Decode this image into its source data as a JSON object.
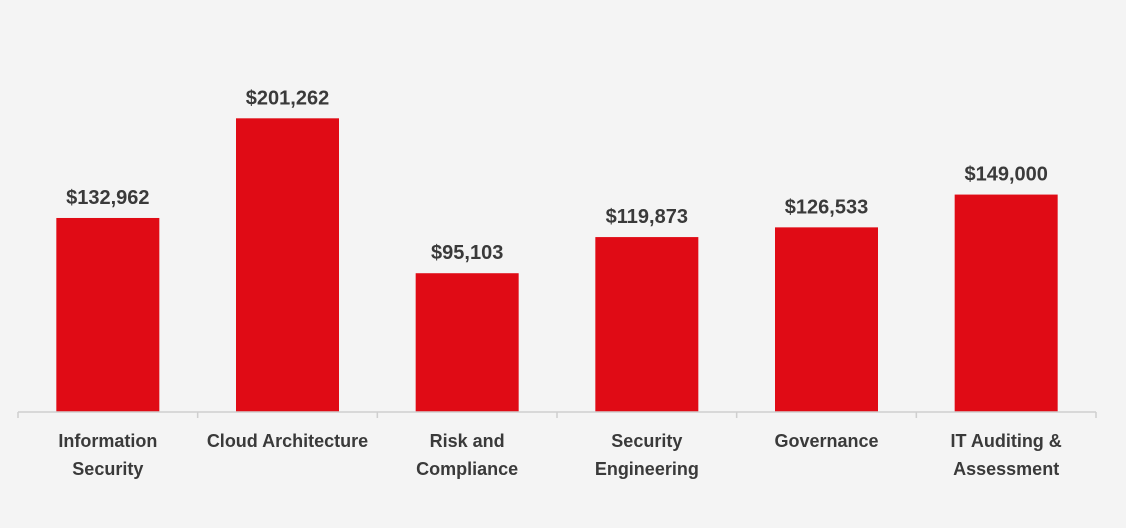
{
  "chart_data": {
    "type": "bar",
    "categories": [
      [
        "Information",
        "Security"
      ],
      [
        "Cloud Architecture"
      ],
      [
        "Risk and",
        "Compliance"
      ],
      [
        "Security",
        "Engineering"
      ],
      [
        "Governance"
      ],
      [
        "IT Auditing &",
        "Assessment"
      ]
    ],
    "values": [
      132962,
      201262,
      95103,
      119873,
      126533,
      149000
    ],
    "value_labels": [
      "$132,962",
      "$201,262",
      "$95,103",
      "$119,873",
      "$126,533",
      "$149,000"
    ],
    "title": "",
    "xlabel": "",
    "ylabel": "",
    "ylim": [
      0,
      233000
    ],
    "grid": false,
    "colors": {
      "bar": "#e00b15",
      "axis": "#cfcfcf",
      "text": "#3a3a3a",
      "background": "#f4f4f4"
    }
  }
}
